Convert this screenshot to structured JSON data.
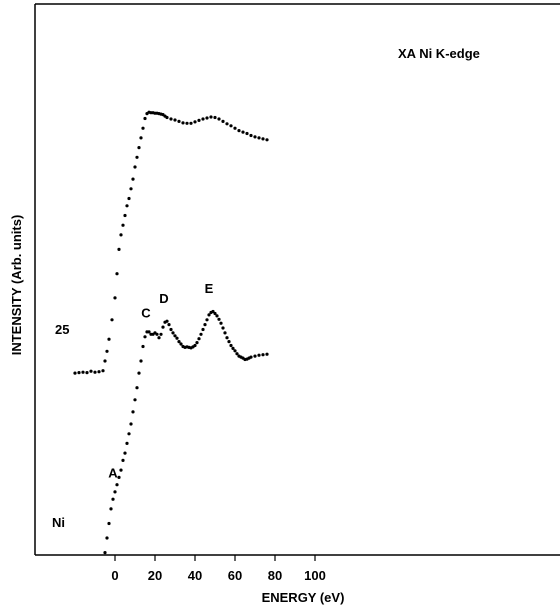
{
  "chart_data": {
    "type": "scatter",
    "title": "XA Ni K-edge",
    "xlabel": "ENERGY (eV)",
    "ylabel": "INTENSITY (Arb. units)",
    "xlim": [
      -20,
      112
    ],
    "ylim": [
      0,
      100
    ],
    "x_ticks": [
      "0",
      "20",
      "40",
      "60",
      "80",
      "100"
    ],
    "grid": false,
    "legend": "none",
    "series": [
      {
        "name": "25",
        "points": [
          [
            -20,
            37.5
          ],
          [
            -18,
            37.6
          ],
          [
            -16,
            37.7
          ],
          [
            -14,
            37.6
          ],
          [
            -12,
            37.9
          ],
          [
            -10,
            37.7
          ],
          [
            -8,
            37.8
          ],
          [
            -6,
            38
          ],
          [
            -5,
            40
          ],
          [
            -4,
            42
          ],
          [
            -3,
            44.5
          ],
          [
            -1.5,
            48.5
          ],
          [
            0,
            53
          ],
          [
            1,
            58
          ],
          [
            2,
            63
          ],
          [
            3,
            66
          ],
          [
            4,
            68
          ],
          [
            5,
            70
          ],
          [
            6,
            72
          ],
          [
            7,
            73.5
          ],
          [
            8,
            75.5
          ],
          [
            9,
            77.5
          ],
          [
            10,
            80
          ],
          [
            11,
            82
          ],
          [
            12,
            84
          ],
          [
            13,
            86
          ],
          [
            14,
            88
          ],
          [
            15,
            90
          ],
          [
            16,
            91
          ],
          [
            17,
            91.3
          ],
          [
            18,
            91.2
          ],
          [
            19,
            91.2
          ],
          [
            20,
            91.1
          ],
          [
            21,
            91.1
          ],
          [
            22,
            91
          ],
          [
            23,
            90.9
          ],
          [
            24,
            90.8
          ],
          [
            25,
            90.5
          ],
          [
            26,
            90.2
          ],
          [
            28,
            89.9
          ],
          [
            30,
            89.7
          ],
          [
            32,
            89.4
          ],
          [
            34,
            89.1
          ],
          [
            36,
            89
          ],
          [
            38,
            89
          ],
          [
            40,
            89.3
          ],
          [
            42,
            89.6
          ],
          [
            44,
            89.9
          ],
          [
            46,
            90.1
          ],
          [
            48,
            90.3
          ],
          [
            50,
            90.2
          ],
          [
            52,
            89.9
          ],
          [
            54,
            89.4
          ],
          [
            56,
            88.9
          ],
          [
            58,
            88.5
          ],
          [
            60,
            88
          ],
          [
            62,
            87.5
          ],
          [
            64,
            87.2
          ],
          [
            66,
            86.9
          ],
          [
            68,
            86.5
          ],
          [
            70,
            86.2
          ],
          [
            72,
            86
          ],
          [
            74,
            85.8
          ],
          [
            76,
            85.6
          ]
        ]
      },
      {
        "name": "Ni",
        "points": [
          [
            -5,
            0.5
          ],
          [
            -4,
            3.5
          ],
          [
            -3,
            6.5
          ],
          [
            -2,
            9.5
          ],
          [
            -1,
            11.5
          ],
          [
            0,
            13
          ],
          [
            1,
            14.5
          ],
          [
            2,
            16
          ],
          [
            3,
            17.5
          ],
          [
            4,
            19.5
          ],
          [
            5,
            21
          ],
          [
            6,
            23
          ],
          [
            7,
            25
          ],
          [
            8,
            27
          ],
          [
            9,
            29.5
          ],
          [
            10,
            32
          ],
          [
            11,
            34.5
          ],
          [
            12,
            37.5
          ],
          [
            13,
            40
          ],
          [
            14,
            43
          ],
          [
            15,
            45
          ],
          [
            16,
            46
          ],
          [
            17,
            46
          ],
          [
            18,
            45.5
          ],
          [
            19,
            45.5
          ],
          [
            20,
            45.8
          ],
          [
            21,
            45.5
          ],
          [
            22,
            44.8
          ],
          [
            23,
            45.5
          ],
          [
            24,
            47
          ],
          [
            25,
            48
          ],
          [
            26,
            48.2
          ],
          [
            27,
            47.5
          ],
          [
            28,
            46.5
          ],
          [
            29,
            45.8
          ],
          [
            30,
            45.2
          ],
          [
            31,
            44.7
          ],
          [
            32,
            44
          ],
          [
            33,
            43.5
          ],
          [
            34,
            43
          ],
          [
            35,
            42.8
          ],
          [
            36,
            42.9
          ],
          [
            37,
            42.8
          ],
          [
            38,
            42.7
          ],
          [
            39,
            42.9
          ],
          [
            40,
            43.2
          ],
          [
            41,
            43.8
          ],
          [
            42,
            44.6
          ],
          [
            43,
            45.5
          ],
          [
            44,
            46.5
          ],
          [
            45,
            47.5
          ],
          [
            46,
            48.5
          ],
          [
            47,
            49.5
          ],
          [
            48,
            50
          ],
          [
            49,
            50.2
          ],
          [
            50,
            49.8
          ],
          [
            51,
            49.3
          ],
          [
            52,
            48.6
          ],
          [
            53,
            47.8
          ],
          [
            54,
            46.8
          ],
          [
            55,
            45.8
          ],
          [
            56,
            44.8
          ],
          [
            57,
            44
          ],
          [
            58,
            43.2
          ],
          [
            59,
            42.6
          ],
          [
            60,
            42.1
          ],
          [
            61,
            41.5
          ],
          [
            62,
            41
          ],
          [
            63,
            40.8
          ],
          [
            64,
            40.6
          ],
          [
            65,
            40.3
          ],
          [
            66,
            40.4
          ],
          [
            67,
            40.6
          ],
          [
            68,
            40.8
          ],
          [
            70,
            41
          ],
          [
            72,
            41.2
          ],
          [
            74,
            41.3
          ],
          [
            76,
            41.4
          ]
        ]
      }
    ],
    "annotations": [
      {
        "text": "A",
        "x": -1,
        "y": 16
      },
      {
        "text": "C",
        "x": 15.5,
        "y": 49
      },
      {
        "text": "D",
        "x": 24.5,
        "y": 52
      },
      {
        "text": "E",
        "x": 47,
        "y": 54
      }
    ]
  }
}
